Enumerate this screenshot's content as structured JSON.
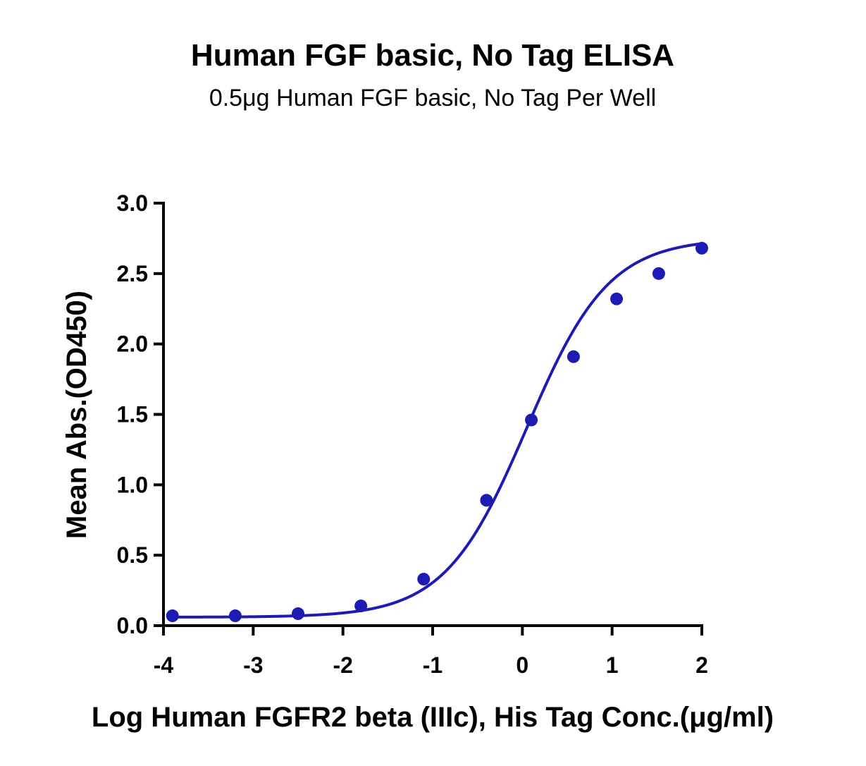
{
  "chart_data": {
    "type": "scatter",
    "title": "Human FGF basic, No Tag ELISA",
    "subtitle": "0.5μg Human FGF basic, No Tag Per Well",
    "xlabel": "Log Human FGFR2 beta (IIIc), His Tag Conc.(μg/ml)",
    "ylabel": "Mean Abs.(OD450)",
    "xlim": [
      -4,
      2
    ],
    "ylim": [
      0,
      3.0
    ],
    "x_ticks": [
      "-4",
      "-3",
      "-2",
      "-1",
      "0",
      "1",
      "2"
    ],
    "y_ticks": [
      "0.0",
      "0.5",
      "1.0",
      "1.5",
      "2.0",
      "2.5",
      "3.0"
    ],
    "grid": false,
    "colors": {
      "series": "#1c1cb4"
    },
    "series": [
      {
        "x": [
          -3.9,
          -3.2,
          -2.5,
          -1.8,
          -1.1,
          -0.4,
          0.1,
          0.57,
          1.05,
          1.52,
          2.0
        ],
        "y": [
          0.07,
          0.07,
          0.085,
          0.14,
          0.33,
          0.89,
          1.46,
          1.91,
          2.32,
          2.5,
          2.68
        ],
        "fit": {
          "bottom": 0.06,
          "top": 2.75,
          "logEC50": 0.05,
          "hill": 0.95
        }
      }
    ]
  }
}
